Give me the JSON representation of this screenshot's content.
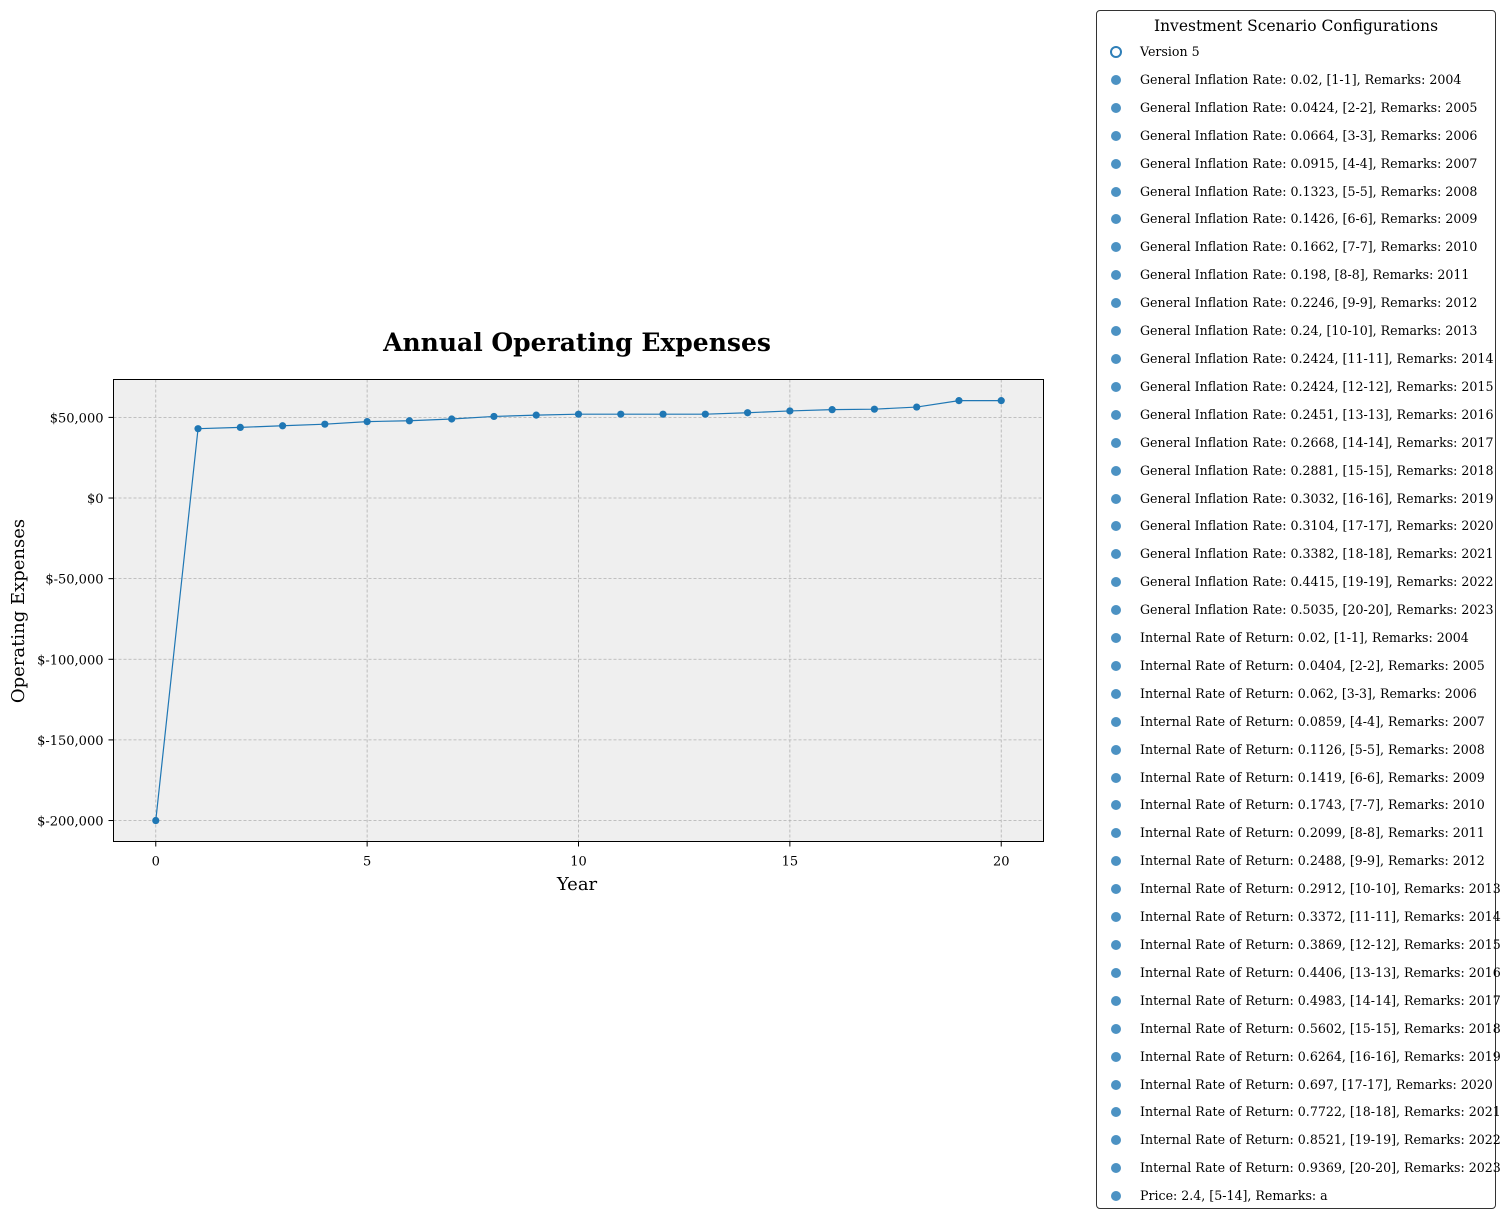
{
  "chart_data": {
    "type": "line",
    "title": "Annual Operating Expenses",
    "xlabel": "Year",
    "ylabel": "Operating Expenses",
    "xlim": [
      -1,
      21
    ],
    "ylim": [
      -213000,
      73500
    ],
    "x_ticks": [
      0,
      5,
      10,
      15,
      20
    ],
    "x_tick_labels": [
      "0",
      "5",
      "10",
      "15",
      "20"
    ],
    "y_ticks": [
      -200000,
      -150000,
      -100000,
      -50000,
      0,
      50000
    ],
    "y_tick_labels": [
      "$-200,000",
      "$-150,000",
      "$-100,000",
      "$-50,000",
      "$0",
      "$50,000"
    ],
    "grid": true,
    "plot_background": "#efefef",
    "series": [
      {
        "color": "#1f77b4",
        "x": [
          0,
          1,
          2,
          3,
          4,
          5,
          6,
          7,
          8,
          9,
          10,
          11,
          12,
          13,
          14,
          15,
          16,
          17,
          18,
          19,
          20
        ],
        "y": [
          -200000,
          43000,
          43800,
          44800,
          45800,
          47400,
          47900,
          49000,
          50600,
          51400,
          52000,
          52000,
          52000,
          52000,
          52900,
          54000,
          54800,
          55100,
          56400,
          60400,
          60400
        ]
      }
    ],
    "legend": {
      "position": "outside-right",
      "title": "Investment Scenario Configurations",
      "entries": [
        {
          "label": "Version 5",
          "marker": "hollow"
        },
        {
          "label": "General Inflation Rate: 0.02, [1-1], Remarks: 2004",
          "marker": "filled"
        },
        {
          "label": "General Inflation Rate: 0.0424, [2-2], Remarks: 2005",
          "marker": "filled"
        },
        {
          "label": "General Inflation Rate: 0.0664, [3-3], Remarks: 2006",
          "marker": "filled"
        },
        {
          "label": "General Inflation Rate: 0.0915, [4-4], Remarks: 2007",
          "marker": "filled"
        },
        {
          "label": "General Inflation Rate: 0.1323, [5-5], Remarks: 2008",
          "marker": "filled"
        },
        {
          "label": "General Inflation Rate: 0.1426, [6-6], Remarks: 2009",
          "marker": "filled"
        },
        {
          "label": "General Inflation Rate: 0.1662, [7-7], Remarks: 2010",
          "marker": "filled"
        },
        {
          "label": "General Inflation Rate: 0.198, [8-8], Remarks: 2011",
          "marker": "filled"
        },
        {
          "label": "General Inflation Rate: 0.2246, [9-9], Remarks: 2012",
          "marker": "filled"
        },
        {
          "label": "General Inflation Rate: 0.24, [10-10], Remarks: 2013",
          "marker": "filled"
        },
        {
          "label": "General Inflation Rate: 0.2424, [11-11], Remarks: 2014",
          "marker": "filled"
        },
        {
          "label": "General Inflation Rate: 0.2424, [12-12], Remarks: 2015",
          "marker": "filled"
        },
        {
          "label": "General Inflation Rate: 0.2451, [13-13], Remarks: 2016",
          "marker": "filled"
        },
        {
          "label": "General Inflation Rate: 0.2668, [14-14], Remarks: 2017",
          "marker": "filled"
        },
        {
          "label": "General Inflation Rate: 0.2881, [15-15], Remarks: 2018",
          "marker": "filled"
        },
        {
          "label": "General Inflation Rate: 0.3032, [16-16], Remarks: 2019",
          "marker": "filled"
        },
        {
          "label": "General Inflation Rate: 0.3104, [17-17], Remarks: 2020",
          "marker": "filled"
        },
        {
          "label": "General Inflation Rate: 0.3382, [18-18], Remarks: 2021",
          "marker": "filled"
        },
        {
          "label": "General Inflation Rate: 0.4415, [19-19], Remarks: 2022",
          "marker": "filled"
        },
        {
          "label": "General Inflation Rate: 0.5035, [20-20], Remarks: 2023",
          "marker": "filled"
        },
        {
          "label": "Internal Rate of Return: 0.02, [1-1], Remarks: 2004",
          "marker": "filled"
        },
        {
          "label": "Internal Rate of Return: 0.0404, [2-2], Remarks: 2005",
          "marker": "filled"
        },
        {
          "label": "Internal Rate of Return: 0.062, [3-3], Remarks: 2006",
          "marker": "filled"
        },
        {
          "label": "Internal Rate of Return: 0.0859, [4-4], Remarks: 2007",
          "marker": "filled"
        },
        {
          "label": "Internal Rate of Return: 0.1126, [5-5], Remarks: 2008",
          "marker": "filled"
        },
        {
          "label": "Internal Rate of Return: 0.1419, [6-6], Remarks: 2009",
          "marker": "filled"
        },
        {
          "label": "Internal Rate of Return: 0.1743, [7-7], Remarks: 2010",
          "marker": "filled"
        },
        {
          "label": "Internal Rate of Return: 0.2099, [8-8], Remarks: 2011",
          "marker": "filled"
        },
        {
          "label": "Internal Rate of Return: 0.2488, [9-9], Remarks: 2012",
          "marker": "filled"
        },
        {
          "label": "Internal Rate of Return: 0.2912, [10-10], Remarks: 2013",
          "marker": "filled"
        },
        {
          "label": "Internal Rate of Return: 0.3372, [11-11], Remarks: 2014",
          "marker": "filled"
        },
        {
          "label": "Internal Rate of Return: 0.3869, [12-12], Remarks: 2015",
          "marker": "filled"
        },
        {
          "label": "Internal Rate of Return: 0.4406, [13-13], Remarks: 2016",
          "marker": "filled"
        },
        {
          "label": "Internal Rate of Return: 0.4983, [14-14], Remarks: 2017",
          "marker": "filled"
        },
        {
          "label": "Internal Rate of Return: 0.5602, [15-15], Remarks: 2018",
          "marker": "filled"
        },
        {
          "label": "Internal Rate of Return: 0.6264, [16-16], Remarks: 2019",
          "marker": "filled"
        },
        {
          "label": "Internal Rate of Return: 0.697, [17-17], Remarks: 2020",
          "marker": "filled"
        },
        {
          "label": "Internal Rate of Return: 0.7722, [18-18], Remarks: 2021",
          "marker": "filled"
        },
        {
          "label": "Internal Rate of Return: 0.8521, [19-19], Remarks: 2022",
          "marker": "filled"
        },
        {
          "label": "Internal Rate of Return: 0.9369, [20-20], Remarks: 2023",
          "marker": "filled"
        },
        {
          "label": "Price: 2.4, [5-14], Remarks: a",
          "marker": "filled"
        }
      ]
    }
  }
}
